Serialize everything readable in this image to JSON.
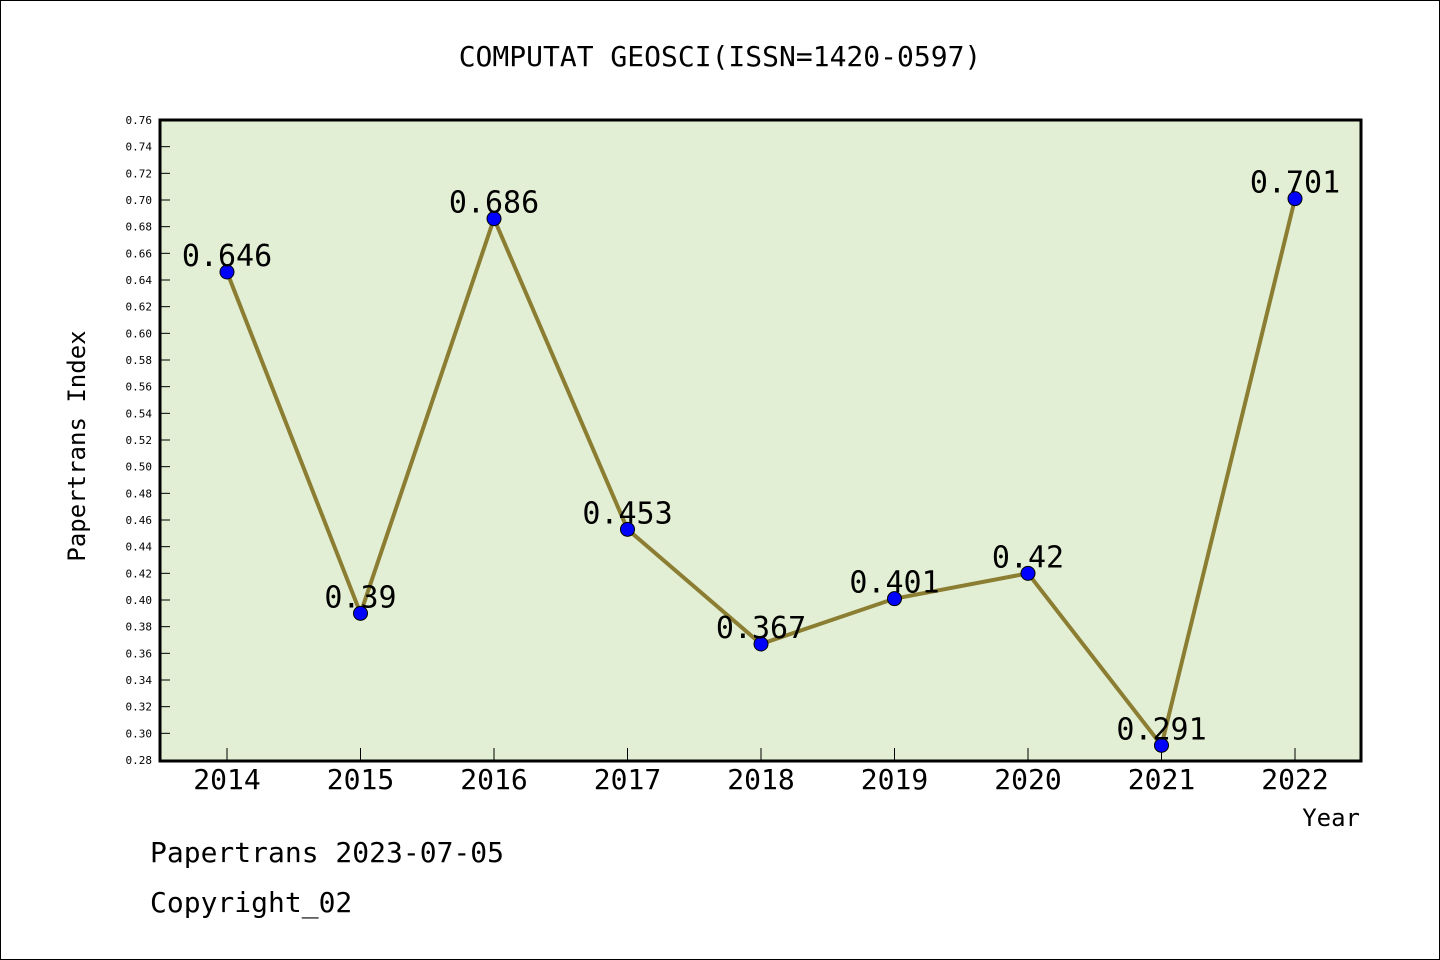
{
  "chart_data": {
    "type": "line",
    "title": "COMPUTAT GEOSCI(ISSN=1420-0597)",
    "xlabel": "Year",
    "ylabel": "Papertrans Index",
    "x": [
      "2014",
      "2015",
      "2016",
      "2017",
      "2018",
      "2019",
      "2020",
      "2021",
      "2022"
    ],
    "values": [
      0.646,
      0.39,
      0.686,
      0.453,
      0.367,
      0.401,
      0.42,
      0.291,
      0.701
    ],
    "data_labels": [
      "0.646",
      "0.39",
      "0.686",
      "0.453",
      "0.367",
      "0.401",
      "0.42",
      "0.291",
      "0.701"
    ],
    "ylim": [
      0.28,
      0.76
    ],
    "y_ticks": [
      "0.28",
      "0.30",
      "0.32",
      "0.34",
      "0.36",
      "0.38",
      "0.40",
      "0.42",
      "0.44",
      "0.46",
      "0.48",
      "0.50",
      "0.52",
      "0.54",
      "0.56",
      "0.58",
      "0.60",
      "0.62",
      "0.64",
      "0.66",
      "0.68",
      "0.70",
      "0.72",
      "0.74",
      "0.76"
    ],
    "grid": false,
    "colors": {
      "plot_background": "#e2efd4",
      "line": "#8b7d32",
      "marker": "#0000ff",
      "axis": "#000000"
    }
  },
  "footer": {
    "date_text": "Papertrans 2023-07-05",
    "copyright_text": "Copyright_02"
  }
}
